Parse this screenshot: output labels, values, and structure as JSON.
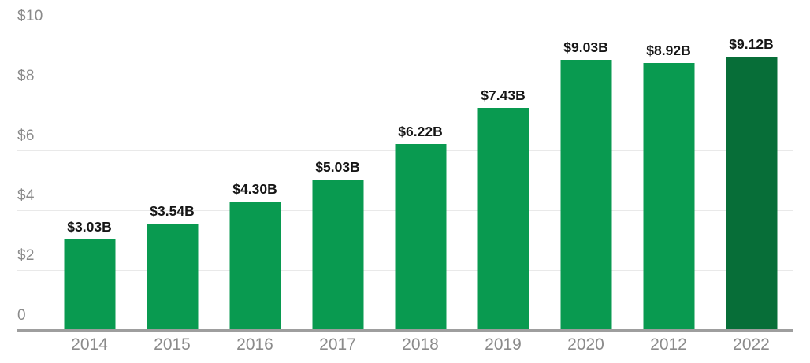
{
  "chart_data": {
    "type": "bar",
    "categories": [
      "2014",
      "2015",
      "2016",
      "2017",
      "2018",
      "2019",
      "2020",
      "2012",
      "2022"
    ],
    "values": [
      3.03,
      3.54,
      4.3,
      5.03,
      6.22,
      7.43,
      9.03,
      8.92,
      9.12
    ],
    "bar_labels": [
      "$3.03B",
      "$3.54B",
      "$4.30B",
      "$5.03B",
      "$6.22B",
      "$7.43B",
      "$9.03B",
      "$8.92B",
      "$9.12B"
    ],
    "y_ticks": [
      {
        "label": "$10",
        "value": 10
      },
      {
        "label": "$8",
        "value": 8
      },
      {
        "label": "$6",
        "value": 6
      },
      {
        "label": "$4",
        "value": 4
      },
      {
        "label": "$2",
        "value": 2
      },
      {
        "label": "0",
        "value": 0
      }
    ],
    "title": "",
    "xlabel": "",
    "ylabel": "",
    "ylim": [
      0,
      10
    ],
    "grid": true,
    "legend": false,
    "bar_color": "#099a50",
    "highlight_color": "#076e38",
    "highlight_index": 8,
    "gridline_color": "#e9e9e9",
    "baseline_color": "#9e9e9e",
    "y_label_color": "#8a8a8a",
    "x_label_color": "#8b8b8b",
    "value_label_color": "#161616"
  }
}
